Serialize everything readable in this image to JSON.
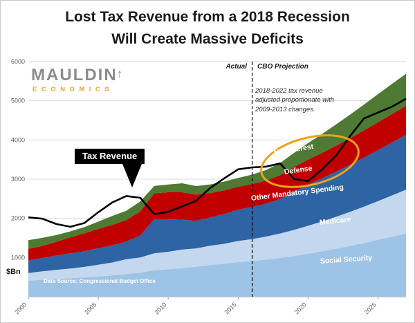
{
  "title": {
    "line1": "Lost Tax Revenue from a 2018 Recession",
    "line2": "Will Create Massive Deficits"
  },
  "logo": {
    "main": "MAULDIN",
    "arrow": "↑",
    "sub": "ECONOMICS"
  },
  "annotations": {
    "actual": "Actual",
    "projection": "CBO Projection",
    "note": "2018-2022 tax revenue adjusted proportionate with 2009-2013 changes.",
    "y_unit": "$Bn",
    "source": "Data Source: Congressional Budget Office"
  },
  "chart_data": {
    "type": "area",
    "stacked": true,
    "title": "Lost Tax Revenue from a 2018 Recession Will Create Massive Deficits",
    "ylabel": "$Bn",
    "ylim": [
      0,
      6000
    ],
    "y_ticks": [
      1000,
      2000,
      3000,
      4000,
      5000,
      6000
    ],
    "x_ticks": [
      2000,
      2005,
      2010,
      2015,
      2020,
      2025
    ],
    "grid": true,
    "divider_x": 2016,
    "divider_label_left": "Actual",
    "divider_label_right": "CBO Projection",
    "x": [
      2000,
      2001,
      2002,
      2003,
      2004,
      2005,
      2006,
      2007,
      2008,
      2009,
      2010,
      2011,
      2012,
      2013,
      2014,
      2015,
      2016,
      2017,
      2018,
      2019,
      2020,
      2021,
      2022,
      2023,
      2024,
      2025,
      2026,
      2027
    ],
    "series": [
      {
        "name": "Social Security",
        "color": "#9dc3e6",
        "values": [
          409,
          433,
          456,
          471,
          492,
          519,
          544,
          581,
          612,
          678,
          701,
          725,
          768,
          808,
          845,
          882,
          910,
          945,
          988,
          1040,
          1100,
          1160,
          1225,
          1295,
          1370,
          1450,
          1530,
          1610
        ]
      },
      {
        "name": "Medicare",
        "color": "#c3d7ee",
        "values": [
          197,
          217,
          230,
          249,
          269,
          298,
          329,
          375,
          390,
          430,
          446,
          480,
          466,
          492,
          505,
          540,
          560,
          590,
          625,
          665,
          710,
          760,
          815,
          870,
          930,
          990,
          1055,
          1120
        ]
      },
      {
        "name": "Other Mandatory Spending",
        "color": "#2e63a4",
        "values": [
          320,
          340,
          365,
          390,
          400,
          420,
          440,
          450,
          560,
          870,
          830,
          760,
          700,
          720,
          760,
          800,
          820,
          840,
          880,
          980,
          1050,
          1100,
          1150,
          1200,
          1250,
          1300,
          1350,
          1400
        ]
      },
      {
        "name": "Defense",
        "color": "#c00000",
        "values": [
          295,
          305,
          350,
          405,
          455,
          495,
          520,
          550,
          615,
          660,
          690,
          700,
          670,
          625,
          600,
          585,
          585,
          590,
          610,
          625,
          640,
          650,
          665,
          680,
          695,
          710,
          725,
          740
        ]
      },
      {
        "name": "Net Interest",
        "color": "#4e7a33",
        "values": [
          223,
          206,
          171,
          153,
          160,
          184,
          227,
          237,
          253,
          187,
          196,
          230,
          220,
          221,
          229,
          223,
          240,
          270,
          310,
          360,
          420,
          480,
          540,
          600,
          660,
          720,
          770,
          820
        ]
      }
    ],
    "line_series": {
      "name": "Tax Revenue",
      "color": "#000000",
      "values": [
        2025,
        1990,
        1855,
        1785,
        1880,
        2155,
        2405,
        2570,
        2525,
        2105,
        2165,
        2305,
        2450,
        2775,
        3020,
        3250,
        3300,
        3320,
        3400,
        3000,
        2950,
        3250,
        3600,
        4100,
        4550,
        4700,
        4850,
        5050
      ]
    },
    "highlight": {
      "color": "#efa21b"
    }
  }
}
